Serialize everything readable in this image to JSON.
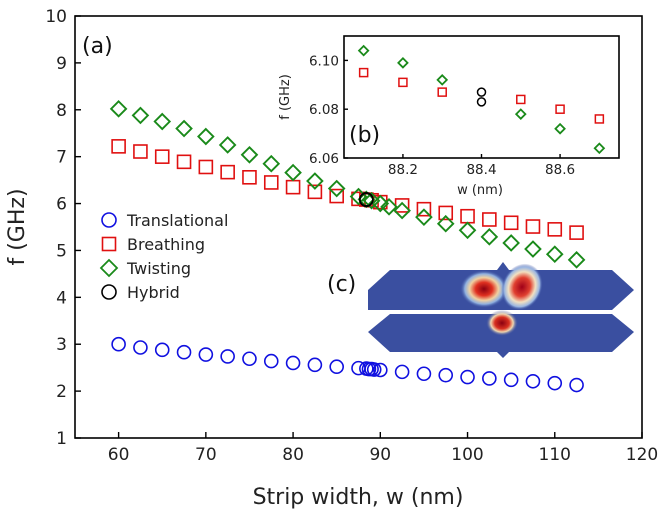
{
  "chart_data": [
    {
      "panel": "(a)",
      "type": "scatter",
      "xlabel": "Strip width, w (nm)",
      "ylabel": "f (GHz)",
      "xlim": [
        55,
        120
      ],
      "ylim": [
        1,
        10
      ],
      "xticks": [
        60,
        70,
        80,
        90,
        100,
        110,
        120
      ],
      "yticks": [
        1,
        2,
        3,
        4,
        5,
        6,
        7,
        8,
        9,
        10
      ],
      "legend_position": "left-center",
      "series": [
        {
          "name": "Translational",
          "marker": "circle",
          "color": "#1010e0",
          "points": [
            [
              60,
              3.0
            ],
            [
              62.5,
              2.93
            ],
            [
              65,
              2.88
            ],
            [
              67.5,
              2.83
            ],
            [
              70,
              2.78
            ],
            [
              72.5,
              2.74
            ],
            [
              75,
              2.69
            ],
            [
              77.5,
              2.64
            ],
            [
              80,
              2.6
            ],
            [
              82.5,
              2.56
            ],
            [
              85,
              2.52
            ],
            [
              87.5,
              2.49
            ],
            [
              88.4,
              2.48
            ],
            [
              88.7,
              2.47
            ],
            [
              89.0,
              2.47
            ],
            [
              89.3,
              2.46
            ],
            [
              90,
              2.45
            ],
            [
              92.5,
              2.41
            ],
            [
              95,
              2.37
            ],
            [
              97.5,
              2.34
            ],
            [
              100,
              2.3
            ],
            [
              102.5,
              2.27
            ],
            [
              105,
              2.24
            ],
            [
              107.5,
              2.21
            ],
            [
              110,
              2.17
            ],
            [
              112.5,
              2.13
            ]
          ]
        },
        {
          "name": "Breathing",
          "marker": "square",
          "color": "#e01010",
          "points": [
            [
              60,
              7.22
            ],
            [
              62.5,
              7.11
            ],
            [
              65,
              7.0
            ],
            [
              67.5,
              6.89
            ],
            [
              70,
              6.78
            ],
            [
              72.5,
              6.67
            ],
            [
              75,
              6.56
            ],
            [
              77.5,
              6.45
            ],
            [
              80,
              6.35
            ],
            [
              82.5,
              6.25
            ],
            [
              85,
              6.16
            ],
            [
              87.5,
              6.1
            ],
            [
              88.4,
              6.085
            ],
            [
              89,
              6.07
            ],
            [
              90,
              6.03
            ],
            [
              92.5,
              5.96
            ],
            [
              95,
              5.88
            ],
            [
              97.5,
              5.8
            ],
            [
              100,
              5.73
            ],
            [
              102.5,
              5.66
            ],
            [
              105,
              5.59
            ],
            [
              107.5,
              5.51
            ],
            [
              110,
              5.45
            ],
            [
              112.5,
              5.38
            ]
          ]
        },
        {
          "name": "Twisting",
          "marker": "diamond",
          "color": "#1a8a1a",
          "points": [
            [
              60,
              8.02
            ],
            [
              62.5,
              7.88
            ],
            [
              65,
              7.75
            ],
            [
              67.5,
              7.6
            ],
            [
              70,
              7.43
            ],
            [
              72.5,
              7.25
            ],
            [
              75,
              7.04
            ],
            [
              77.5,
              6.85
            ],
            [
              80,
              6.66
            ],
            [
              82.5,
              6.48
            ],
            [
              85,
              6.32
            ],
            [
              87.5,
              6.15
            ],
            [
              88.4,
              6.09
            ],
            [
              89,
              6.06
            ],
            [
              90,
              6.0
            ],
            [
              91,
              5.93
            ],
            [
              92.5,
              5.85
            ],
            [
              95,
              5.71
            ],
            [
              97.5,
              5.57
            ],
            [
              100,
              5.43
            ],
            [
              102.5,
              5.29
            ],
            [
              105,
              5.16
            ],
            [
              107.5,
              5.03
            ],
            [
              110,
              4.92
            ],
            [
              112.5,
              4.8
            ]
          ]
        },
        {
          "name": "Hybrid",
          "marker": "circle",
          "color": "#000000",
          "points": [
            [
              88.4,
              6.09
            ],
            [
              88.4,
              6.08
            ]
          ]
        }
      ]
    },
    {
      "panel": "(b)",
      "type": "scatter",
      "xlabel": "w (nm)",
      "ylabel": "f (GHz)",
      "xlim": [
        88.05,
        88.75
      ],
      "ylim": [
        6.06,
        6.11
      ],
      "xticks": [
        88.2,
        88.4,
        88.6
      ],
      "yticks": [
        6.06,
        6.08,
        6.1
      ],
      "series": [
        {
          "name": "Breathing",
          "marker": "square",
          "color": "#e01010",
          "points": [
            [
              88.1,
              6.095
            ],
            [
              88.2,
              6.091
            ],
            [
              88.3,
              6.087
            ],
            [
              88.5,
              6.084
            ],
            [
              88.6,
              6.08
            ],
            [
              88.7,
              6.076
            ]
          ]
        },
        {
          "name": "Twisting",
          "marker": "diamond",
          "color": "#1a8a1a",
          "points": [
            [
              88.1,
              6.104
            ],
            [
              88.2,
              6.099
            ],
            [
              88.3,
              6.092
            ],
            [
              88.5,
              6.078
            ],
            [
              88.6,
              6.072
            ],
            [
              88.7,
              6.064
            ]
          ]
        },
        {
          "name": "Hybrid",
          "marker": "circle",
          "color": "#000000",
          "points": [
            [
              88.4,
              6.087
            ],
            [
              88.4,
              6.083
            ]
          ]
        }
      ]
    }
  ],
  "inset_c": {
    "label": "(c)",
    "background_color": "#3a4fa0",
    "hotspot_color": "#b3001a"
  }
}
